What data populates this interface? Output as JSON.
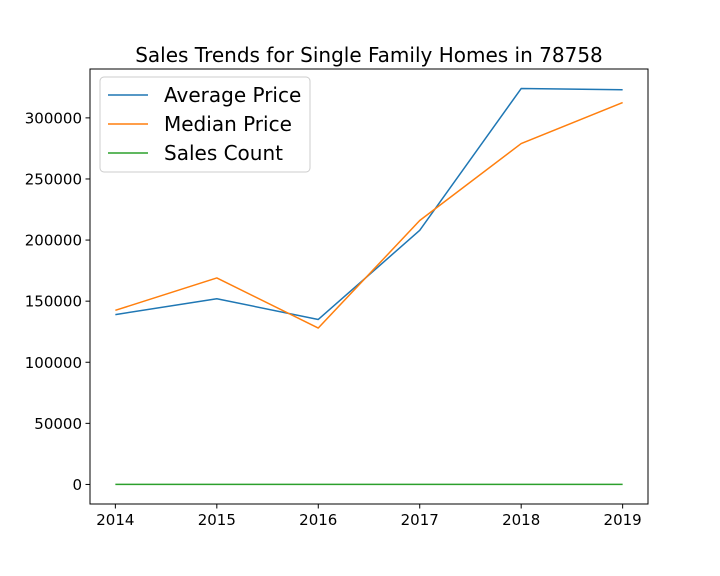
{
  "chart_data": {
    "type": "line",
    "title": "Sales Trends for Single Family Homes in 78758",
    "xlabel": "",
    "ylabel": "",
    "x": [
      2014,
      2015,
      2016,
      2017,
      2018,
      2019
    ],
    "x_tick_labels": [
      "2014",
      "2015",
      "2016",
      "2017",
      "2018",
      "2019"
    ],
    "y_ticks": [
      0,
      50000,
      100000,
      150000,
      200000,
      250000,
      300000
    ],
    "y_tick_labels": [
      "0",
      "50000",
      "100000",
      "150000",
      "200000",
      "250000",
      "300000"
    ],
    "xlim": [
      2013.75,
      2019.25
    ],
    "ylim": [
      -16000,
      340000
    ],
    "grid": false,
    "legend_position": "top-left",
    "series": [
      {
        "name": "Average Price",
        "color": "#1f77b4",
        "values": [
          139000,
          152000,
          135000,
          208000,
          324000,
          323000
        ]
      },
      {
        "name": "Median Price",
        "color": "#ff7f0e",
        "values": [
          142500,
          169000,
          128000,
          216000,
          279000,
          312500
        ]
      },
      {
        "name": "Sales Count",
        "color": "#2ca02c",
        "values": [
          60,
          70,
          65,
          75,
          90,
          95
        ]
      }
    ]
  }
}
